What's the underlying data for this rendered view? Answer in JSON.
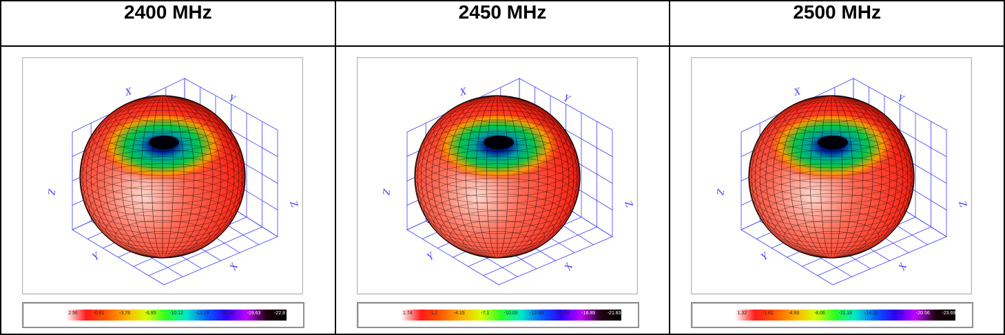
{
  "panels": [
    {
      "title": "2400 MHz",
      "axis_labels": {
        "x_top": "X",
        "y_top": "Y",
        "z_left": "Z",
        "z_right": "Z",
        "y_bottom": "Y",
        "x_bottom": "X"
      },
      "legend_values": [
        "2.56",
        "-0.61",
        "-3.78",
        "-6.95",
        "-10.12",
        "-13.29",
        "-16.46",
        "-19.63",
        "-22.8"
      ]
    },
    {
      "title": "2450 MHz",
      "axis_labels": {
        "x_top": "X",
        "y_top": "Y",
        "z_left": "Z",
        "z_right": "Z",
        "y_bottom": "Y",
        "x_bottom": "X"
      },
      "legend_values": [
        "1.74",
        "-1.2",
        "-4.15",
        "-7.1",
        "-10.05",
        "-12.99",
        "-15.94",
        "-18.89",
        "-21.83"
      ]
    },
    {
      "title": "2500 MHz",
      "axis_labels": {
        "x_top": "X",
        "y_top": "Y",
        "z_left": "Z",
        "z_right": "Z",
        "y_bottom": "Y",
        "x_bottom": "X"
      },
      "legend_values": [
        "1.32",
        "-1.81",
        "-4.93",
        "-8.06",
        "-11.18",
        "-14.31",
        "-17.44",
        "-20.56",
        "-23.69"
      ]
    }
  ],
  "colors": {
    "frame": "#3c3cff",
    "surface_hot": "#ff2a1a",
    "surface_warm": "#ff9a00",
    "surface_cool": "#00c84a",
    "surface_null": "#0020a0",
    "mesh": "#000000"
  }
}
